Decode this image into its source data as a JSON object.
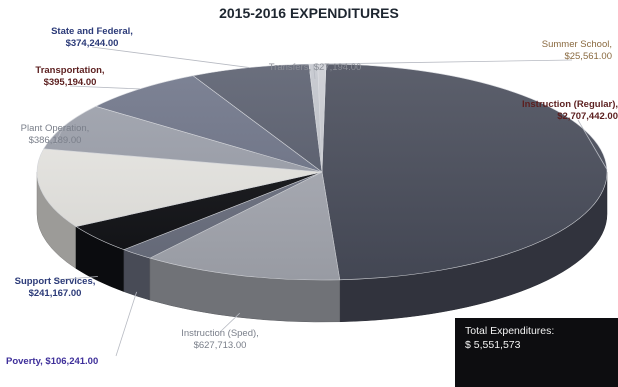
{
  "chart_data": {
    "type": "pie",
    "title": "2015-2016 EXPENDITURES",
    "slices": [
      {
        "name": "Instruction (Regular),",
        "value": "$2,707,442.00",
        "amount": 2707442,
        "color": "#4a4e5c"
      },
      {
        "name": "Instruction (Sped),",
        "value": "$627,713.00",
        "amount": 627713,
        "color": "#a9acb5"
      },
      {
        "name": "Poverty,",
        "value": "$106,241.00",
        "amount": 106241,
        "color": "#6d7282"
      },
      {
        "name": "Support Services,",
        "value": "$241,167.00",
        "amount": 241167,
        "color": "#111216"
      },
      {
        "name": "",
        "value": "",
        "amount": 659000,
        "color": "#ecebe7"
      },
      {
        "name": "Plant Operation,",
        "value": "$386,189.00",
        "amount": 386189,
        "color": "#9ea2ad"
      },
      {
        "name": "Transportation,",
        "value": "$395,194.00",
        "amount": 395194,
        "color": "#70768a"
      },
      {
        "name": "State and Federal,",
        "value": "$374,244.00",
        "amount": 374244,
        "color": "#5a5f6f"
      },
      {
        "name": "Transfers,",
        "value": "$27,194.00",
        "amount": 27194,
        "color": "#c4c7ce"
      },
      {
        "name": "Summer School,",
        "value": "$25,561.00",
        "amount": 25561,
        "color": "#ccced4"
      }
    ]
  },
  "total": {
    "label": "Total Expenditures:",
    "value": "$ 5,551,573"
  }
}
